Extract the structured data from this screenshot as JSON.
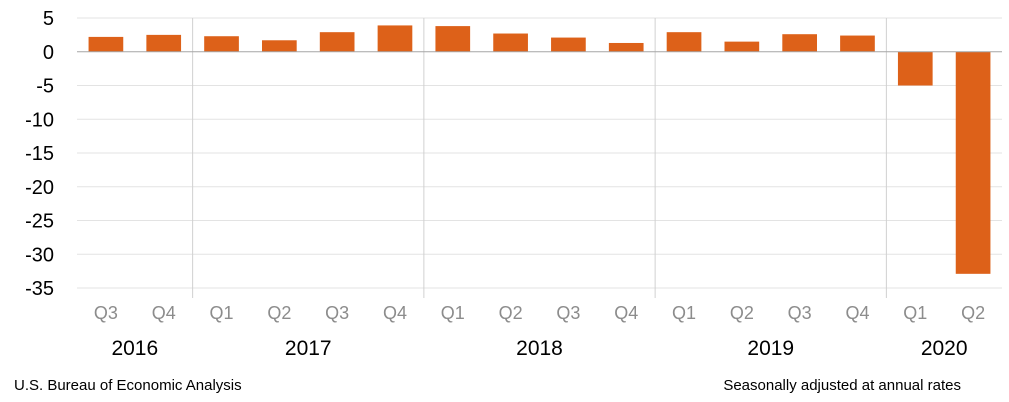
{
  "chart_data": {
    "type": "bar",
    "categories": [
      "Q3",
      "Q4",
      "Q1",
      "Q2",
      "Q3",
      "Q4",
      "Q1",
      "Q2",
      "Q3",
      "Q4",
      "Q1",
      "Q2",
      "Q3",
      "Q4",
      "Q1",
      "Q2"
    ],
    "years": [
      {
        "label": "2016",
        "count": 2
      },
      {
        "label": "2017",
        "count": 4
      },
      {
        "label": "2018",
        "count": 4
      },
      {
        "label": "2019",
        "count": 4
      },
      {
        "label": "2020",
        "count": 2
      }
    ],
    "values": [
      2.2,
      2.5,
      2.3,
      1.7,
      2.9,
      3.9,
      3.8,
      2.7,
      2.1,
      1.3,
      2.9,
      1.5,
      2.6,
      2.4,
      -5.0,
      -32.9
    ],
    "ylim": [
      -35,
      5
    ],
    "yticks": [
      5,
      0,
      -5,
      -10,
      -15,
      -20,
      -25,
      -30,
      -35
    ],
    "bar_color": "#dd6119",
    "grid": true,
    "title": "",
    "xlabel": "",
    "ylabel": ""
  },
  "footer": {
    "source": "U.S. Bureau of Economic Analysis",
    "note": "Seasonally adjusted at annual rates"
  }
}
